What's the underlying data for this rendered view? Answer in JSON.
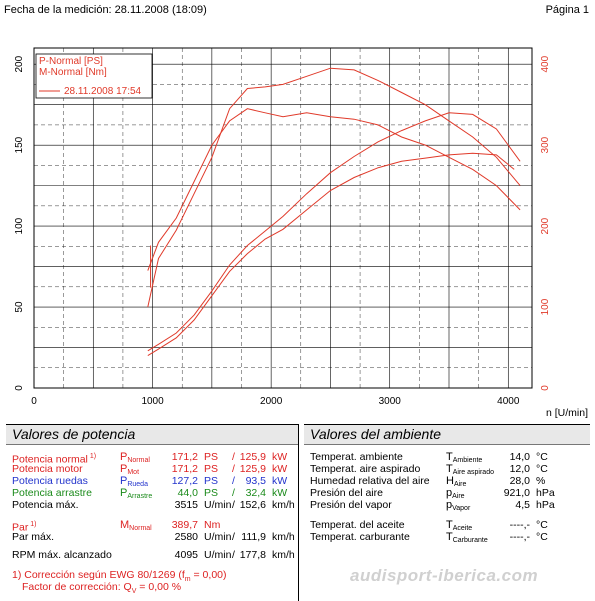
{
  "header": {
    "left": "Fecha de la medición: 28.11.2008 (18:09)",
    "right": "Página 1"
  },
  "colors": {
    "series": "#e03a2a",
    "grid": "#000000"
  },
  "chart_data": {
    "type": "line",
    "xlabel": "n [U/min]",
    "xlim": [
      0,
      4200
    ],
    "x_ticks": [
      0,
      1000,
      2000,
      3000,
      4000
    ],
    "y_left": {
      "ylim": [
        0,
        210
      ],
      "ticks": [
        0,
        50,
        100,
        150,
        200
      ]
    },
    "y_right": {
      "ylim": [
        0,
        420
      ],
      "ticks": [
        0,
        100,
        200,
        300,
        400
      ]
    },
    "grid": true,
    "legend": {
      "placement": "top-left",
      "entries": [
        "P-Normal [PS]",
        "M-Normal [Nm]"
      ],
      "run_label": "28.11.2008 17:54"
    },
    "series": [
      {
        "name": "P-Normal [PS]",
        "axis": "left",
        "x": [
          960,
          1050,
          1200,
          1350,
          1500,
          1650,
          1800,
          1950,
          2100,
          2300,
          2500,
          2700,
          2900,
          3100,
          3300,
          3500,
          3700,
          3900,
          4050
        ],
        "y": [
          20,
          24,
          31,
          42,
          57,
          72,
          83,
          92,
          98,
          110,
          122,
          130,
          136,
          140,
          142,
          144,
          145,
          144,
          135
        ]
      },
      {
        "name": "P-Normal [PS]",
        "axis": "left",
        "x": [
          960,
          1050,
          1200,
          1350,
          1500,
          1650,
          1800,
          1950,
          2100,
          2300,
          2500,
          2700,
          2900,
          3100,
          3300,
          3500,
          3700,
          3900,
          4100
        ],
        "y": [
          23,
          27,
          34,
          45,
          60,
          76,
          88,
          97,
          106,
          120,
          133,
          143,
          152,
          159,
          165,
          170,
          169,
          160,
          140
        ]
      },
      {
        "name": "M-Normal [Nm]",
        "axis": "right",
        "x": [
          960,
          1050,
          1200,
          1350,
          1500,
          1650,
          1800,
          1950,
          2100,
          2300,
          2500,
          2700,
          2900,
          3100,
          3300,
          3500,
          3700,
          3900,
          4100
        ],
        "y": [
          145,
          180,
          210,
          255,
          300,
          330,
          345,
          340,
          335,
          340,
          335,
          332,
          325,
          310,
          300,
          285,
          270,
          250,
          220
        ]
      },
      {
        "name": "M-Normal [Nm]",
        "axis": "right",
        "x": [
          960,
          1050,
          1200,
          1350,
          1500,
          1650,
          1800,
          1950,
          2100,
          2300,
          2500,
          2700,
          2900,
          3100,
          3300,
          3500,
          3700,
          3900,
          4100
        ],
        "y": [
          100,
          160,
          195,
          240,
          285,
          345,
          370,
          372,
          375,
          385,
          395,
          393,
          380,
          365,
          350,
          330,
          310,
          285,
          250
        ]
      }
    ],
    "bar_at_1000": {
      "axis": "left",
      "from": 62,
      "to": 88
    }
  },
  "potencia": {
    "title": "Valores de potencia",
    "rows": [
      {
        "label": "Potencia normal",
        "note": "1)",
        "sym": "P",
        "sub": "Normal",
        "v1": "171,2",
        "u1": "PS",
        "sep": "/",
        "v2": "125,9",
        "u2": "kW",
        "color": "red"
      },
      {
        "label": "Potencia motor",
        "note": "",
        "sym": "P",
        "sub": "Mot",
        "v1": "171,2",
        "u1": "PS",
        "sep": "/",
        "v2": "125,9",
        "u2": "kW",
        "color": "red"
      },
      {
        "label": "Potencia ruedas",
        "note": "",
        "sym": "P",
        "sub": "Rueda",
        "v1": "127,2",
        "u1": "PS",
        "sep": "/",
        "v2": "93,5",
        "u2": "kW",
        "color": "blue"
      },
      {
        "label": "Potencia arrastre",
        "note": "",
        "sym": "P",
        "sub": "Arrastre",
        "v1": "44,0",
        "u1": "PS",
        "sep": "/",
        "v2": "32,4",
        "u2": "kW",
        "color": "green"
      },
      {
        "label": "Potencia máx.",
        "note": "",
        "sym": "",
        "sub": "",
        "v1": "3515",
        "u1": "U/min",
        "sep": "/",
        "v2": "152,6",
        "u2": "km/h",
        "color": "black"
      },
      {
        "label": "Par",
        "note": "1)",
        "sym": "M",
        "sub": "Normal",
        "v1": "389,7",
        "u1": "Nm",
        "sep": "",
        "v2": "",
        "u2": "",
        "color": "red"
      },
      {
        "label": "Par máx.",
        "note": "",
        "sym": "",
        "sub": "",
        "v1": "2580",
        "u1": "U/min",
        "sep": "/",
        "v2": "111,9",
        "u2": "km/h",
        "color": "black"
      },
      {
        "label": "RPM máx. alcanzado",
        "note": "",
        "sym": "",
        "sub": "",
        "v1": "4095",
        "u1": "U/min",
        "sep": "/",
        "v2": "177,8",
        "u2": "km/h",
        "color": "black"
      }
    ],
    "footnote1_a": "1) Corrección según EWG 80/1269 (f",
    "footnote1_sub": "m",
    "footnote1_b": " =  0,00)",
    "footnote2_a": "Factor de corrección: Q",
    "footnote2_sub": "V",
    "footnote2_b": " =  0,00 %"
  },
  "ambiente": {
    "title": "Valores del ambiente",
    "rows": [
      {
        "label": "Temperat. ambiente",
        "sym": "T",
        "sub": "Ambiente",
        "val": "14,0",
        "unit": "°C"
      },
      {
        "label": "Temperat. aire aspirado",
        "sym": "T",
        "sub": "Aire aspirado",
        "val": "12,0",
        "unit": "°C"
      },
      {
        "label": "Humedad relativa del aire",
        "sym": "H",
        "sub": "Aire",
        "val": "28,0",
        "unit": "%"
      },
      {
        "label": "Presión del aire",
        "sym": "p",
        "sub": "Aire",
        "val": "921,0",
        "unit": "hPa"
      },
      {
        "label": "Presión del vapor",
        "sym": "p",
        "sub": "Vapor",
        "val": "4,5",
        "unit": "hPa"
      },
      {
        "label": "Temperat. del aceite",
        "sym": "T",
        "sub": "Aceite",
        "val": "----,-",
        "unit": "°C"
      },
      {
        "label": "Temperat. carburante",
        "sym": "T",
        "sub": "Carburante",
        "val": "----,-",
        "unit": "°C"
      }
    ]
  },
  "watermark": "audisport-iberica.com"
}
